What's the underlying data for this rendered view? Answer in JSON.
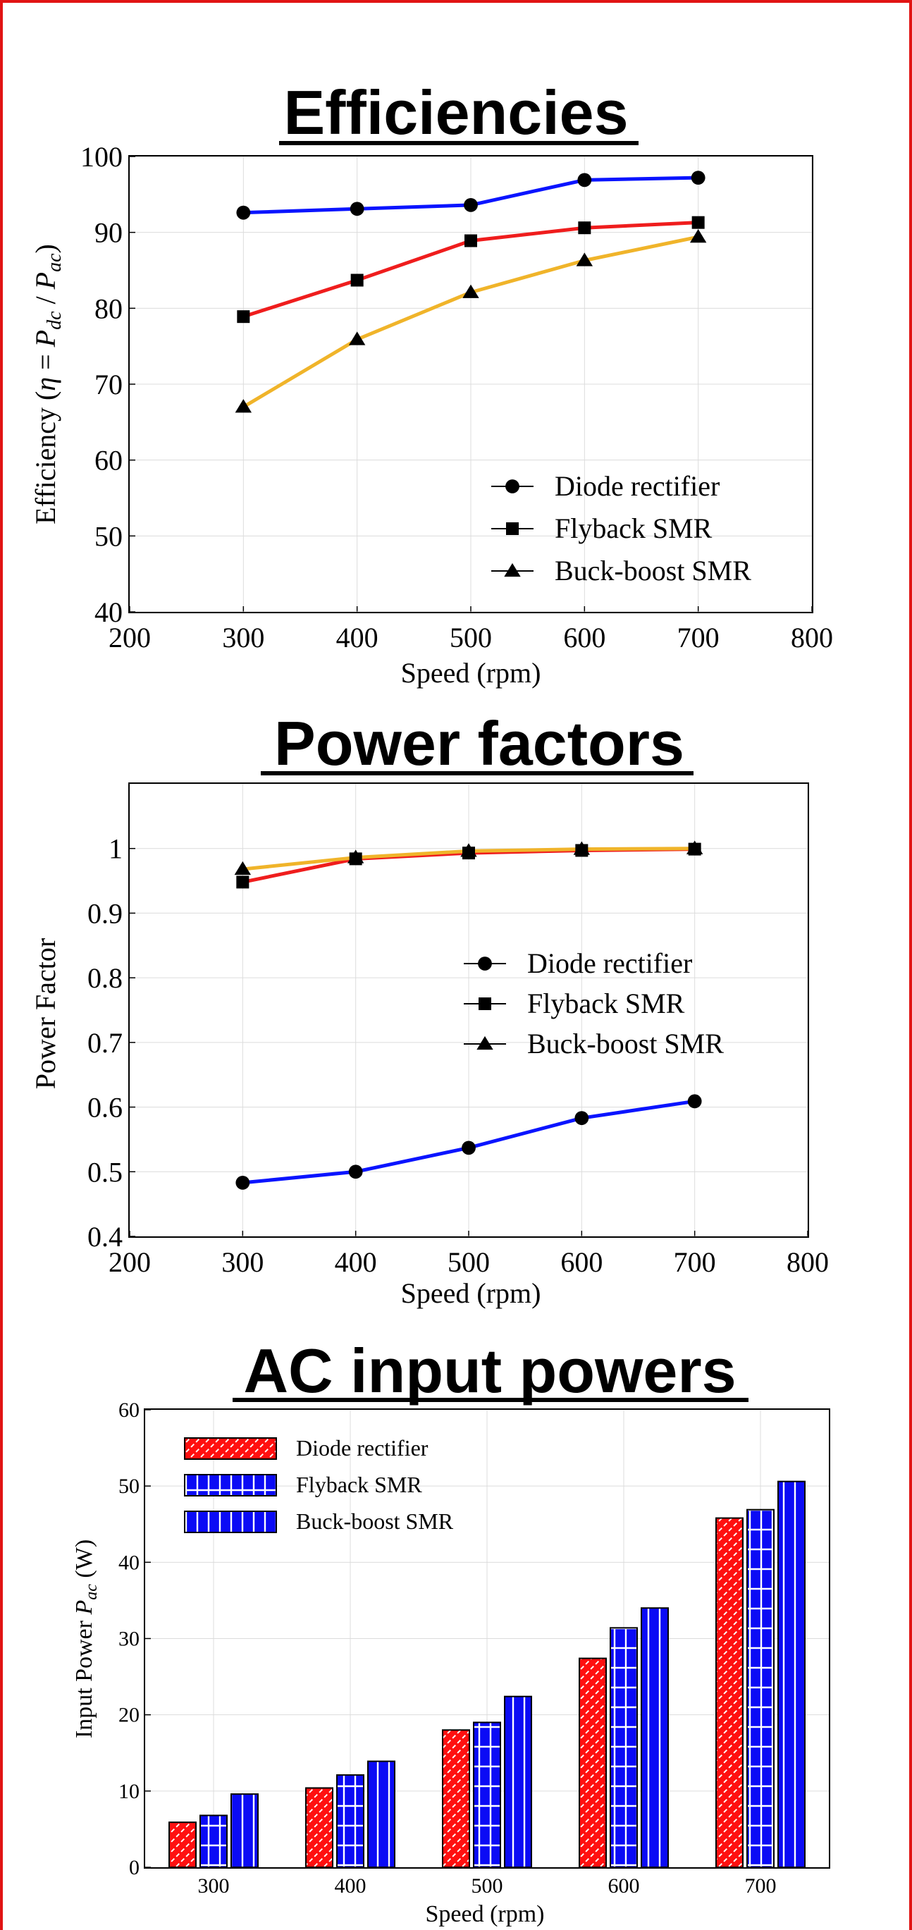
{
  "colors": {
    "frame": "#e11414",
    "diode": "#0a14ff",
    "flyback": "#ef1d1d",
    "buckboost": "#f0b42a",
    "bar_red": "#ff1010",
    "bar_blue": "#0b0bf5"
  },
  "chart_data": [
    {
      "type": "line",
      "title": "Efficiencies",
      "xlabel": "Speed (rpm)",
      "ylabel": "Efficiency (η = P_dc / P_ac)",
      "ylabel_parts": {
        "lead": "Efficiency (",
        "eta": "η",
        "eq": " = ",
        "P1": "P",
        "s1": "dc",
        "slash": " / ",
        "P2": "P",
        "s2": "ac",
        "close": ")"
      },
      "xlim": [
        200,
        800
      ],
      "ylim": [
        40,
        100
      ],
      "xticks": [
        "200",
        "300",
        "400",
        "500",
        "600",
        "700",
        "800"
      ],
      "yticks": [
        "40",
        "50",
        "60",
        "70",
        "80",
        "90",
        "100"
      ],
      "grid": true,
      "legend_position": "bottom-right",
      "x": [
        300,
        400,
        500,
        600,
        700
      ],
      "series": [
        {
          "name": "Diode rectifier",
          "marker": "circle",
          "values": [
            92.6,
            93.1,
            93.6,
            96.9,
            97.2
          ]
        },
        {
          "name": "Flyback SMR",
          "marker": "square",
          "values": [
            78.9,
            83.7,
            88.9,
            90.6,
            91.3
          ]
        },
        {
          "name": "Buck-boost SMR",
          "marker": "triangle",
          "values": [
            67.0,
            75.9,
            82.1,
            86.3,
            89.4
          ]
        }
      ]
    },
    {
      "type": "line",
      "title": "Power factors",
      "xlabel": "Speed (rpm)",
      "ylabel": "Power Factor",
      "xlim": [
        200,
        800
      ],
      "ylim": [
        0.4,
        1.1
      ],
      "xticks": [
        "200",
        "300",
        "400",
        "500",
        "600",
        "700",
        "800"
      ],
      "yticks": [
        "0.4",
        "0.5",
        "0.6",
        "0.7",
        "0.8",
        "0.9",
        "1"
      ],
      "grid": true,
      "legend_position": "center-right",
      "x": [
        300,
        400,
        500,
        600,
        700
      ],
      "series": [
        {
          "name": "Diode rectifier",
          "marker": "circle",
          "values": [
            0.483,
            0.5,
            0.537,
            0.583,
            0.609
          ]
        },
        {
          "name": "Flyback SMR",
          "marker": "square",
          "values": [
            0.948,
            0.984,
            0.993,
            0.997,
            0.999
          ]
        },
        {
          "name": "Buck-boost SMR",
          "marker": "triangle",
          "values": [
            0.968,
            0.986,
            0.996,
            0.999,
            1.0
          ]
        }
      ]
    },
    {
      "type": "bar",
      "title": "AC input powers",
      "xlabel": "Speed (rpm)",
      "ylabel": "Input Power  P_ac  (W)",
      "ylabel_parts": {
        "lead": "Input Power  ",
        "P": "P",
        "sub": "ac",
        "unit": "  (W)"
      },
      "ylim": [
        0,
        60
      ],
      "yticks": [
        "0",
        "10",
        "20",
        "30",
        "40",
        "50",
        "60"
      ],
      "categories": [
        "300",
        "400",
        "500",
        "600",
        "700"
      ],
      "grid": true,
      "legend_position": "top-left",
      "series": [
        {
          "name": "Diode rectifier",
          "fill": "hatch",
          "values": [
            5.9,
            10.4,
            18.0,
            27.4,
            45.8
          ]
        },
        {
          "name": "Flyback SMR",
          "fill": "grid",
          "values": [
            6.8,
            12.1,
            19.0,
            31.4,
            46.9
          ]
        },
        {
          "name": "Buck-boost SMR",
          "fill": "vstripe",
          "values": [
            9.6,
            13.9,
            22.4,
            34.0,
            50.6
          ]
        }
      ]
    }
  ]
}
